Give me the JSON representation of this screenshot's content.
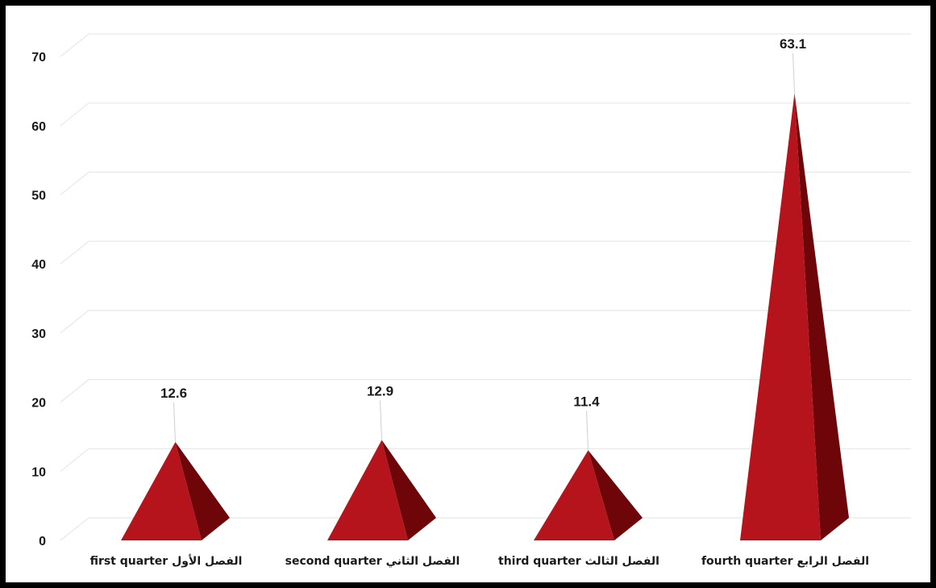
{
  "chart_data": {
    "type": "bar",
    "bar_shape": "pyramid",
    "categories": [
      "first  quarter الفصل الأول",
      "second quarter الفصل الثاني",
      "third quarter الفصل الثالث",
      "fourth quarter الفصل الرابع"
    ],
    "values": [
      12.6,
      12.9,
      11.4,
      63.1
    ],
    "data_labels": [
      "12.6",
      "12.9",
      "11.4",
      "63.1"
    ],
    "title": "",
    "xlabel": "",
    "ylabel": "",
    "ylim": [
      0,
      70
    ],
    "yticks": [
      "0",
      "10",
      "20",
      "30",
      "40",
      "50",
      "60",
      "70"
    ],
    "grid": true,
    "legend": "none"
  },
  "colors": {
    "bar_front": "#b5141c",
    "bar_side": "#6e0508",
    "grid": "#e8e8e8",
    "border": "#000000"
  }
}
